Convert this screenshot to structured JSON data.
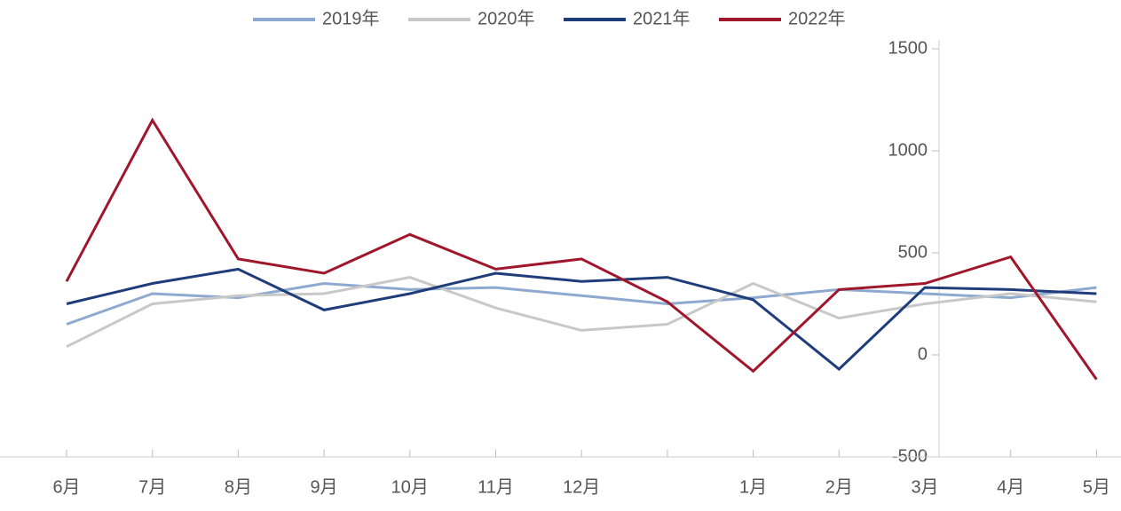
{
  "chart_data": {
    "type": "line",
    "categories": [
      "6月",
      "7月",
      "8月",
      "9月",
      "10月",
      "11月",
      "12月",
      null,
      "1月",
      "2月",
      "3月",
      "4月",
      "5月"
    ],
    "series": [
      {
        "name": "2019年",
        "color": "#8ea9d0",
        "values": [
          150,
          300,
          280,
          350,
          320,
          330,
          290,
          250,
          280,
          320,
          300,
          280,
          330
        ]
      },
      {
        "name": "2020年",
        "color": "#c8c8c8",
        "values": [
          40,
          250,
          290,
          300,
          380,
          230,
          120,
          150,
          350,
          180,
          250,
          300,
          260
        ]
      },
      {
        "name": "2021年",
        "color": "#1f3d7a",
        "values": [
          250,
          350,
          420,
          220,
          300,
          400,
          360,
          380,
          270,
          -70,
          330,
          320,
          300
        ]
      },
      {
        "name": "2022年",
        "color": "#a0172c",
        "values": [
          360,
          1150,
          470,
          400,
          590,
          420,
          470,
          260,
          -80,
          320,
          350,
          480,
          -120
        ]
      }
    ],
    "ylim": [
      -500,
      1500
    ],
    "yticks": [
      -500,
      0,
      500,
      1000,
      1500
    ]
  }
}
